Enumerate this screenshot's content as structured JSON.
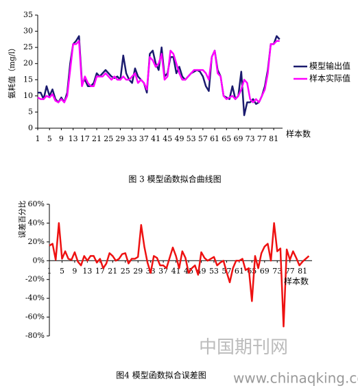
{
  "chart_data": [
    {
      "type": "line",
      "caption": "图 3  模型函数拟合曲线图",
      "y_label": "氨耗值（mg/l）",
      "x_label": "样本数",
      "x": [
        1,
        2,
        3,
        4,
        5,
        6,
        7,
        8,
        9,
        10,
        11,
        12,
        13,
        14,
        15,
        16,
        17,
        18,
        19,
        20,
        21,
        22,
        23,
        24,
        25,
        26,
        27,
        28,
        29,
        30,
        31,
        32,
        33,
        34,
        35,
        36,
        37,
        38,
        39,
        40,
        41,
        42,
        43,
        44,
        45,
        46,
        47,
        48,
        49,
        50,
        51,
        52,
        53,
        54,
        55,
        56,
        57,
        58,
        59,
        60,
        61,
        62,
        63,
        64,
        65,
        66,
        67,
        68,
        69,
        70,
        71,
        72,
        73,
        74,
        75,
        76,
        77,
        78,
        79,
        80,
        81,
        82,
        83
      ],
      "xlim": [
        1,
        84
      ],
      "xticks": [
        1,
        5,
        9,
        13,
        17,
        21,
        25,
        29,
        33,
        37,
        41,
        45,
        49,
        53,
        57,
        61,
        65,
        69,
        73,
        77,
        81
      ],
      "ylim": [
        0,
        35
      ],
      "yticks": [
        0,
        5,
        10,
        15,
        20,
        25,
        30,
        35
      ],
      "legend": "right",
      "series": [
        {
          "name": "模型输出值",
          "color": "#1a1a6e",
          "values": [
            11,
            11,
            9,
            13,
            10,
            12,
            9,
            8,
            9.5,
            8,
            11,
            20,
            26,
            27,
            28.5,
            14,
            15,
            13,
            13,
            14,
            17,
            16,
            17,
            18,
            17,
            16,
            15.5,
            16,
            15,
            22.5,
            17,
            15,
            14,
            18.5,
            16,
            15,
            14,
            11,
            23,
            24,
            20,
            18,
            25,
            16,
            17,
            22,
            22,
            17,
            19,
            16,
            15,
            16,
            17,
            17.5,
            18,
            17.5,
            16,
            13,
            11.5,
            22,
            24,
            18,
            16,
            10,
            9.5,
            9,
            13,
            9,
            10,
            17.5,
            4,
            8,
            8,
            9,
            7.5,
            8,
            10,
            13,
            18,
            26,
            26,
            28.5,
            27.5
          ]
        },
        {
          "name": "样本实际值",
          "color": "#ff00ff",
          "values": [
            9.5,
            9,
            9,
            10,
            9.5,
            10.5,
            8.5,
            8,
            9,
            8,
            10,
            18,
            26,
            26,
            27,
            13,
            16,
            14,
            13,
            13,
            16,
            16,
            16,
            17,
            16,
            15,
            16,
            15,
            15,
            16,
            15,
            15,
            16,
            17,
            14,
            15,
            14,
            12,
            22,
            21,
            19,
            20,
            23,
            15,
            16,
            24,
            23,
            20,
            17,
            15,
            15,
            16,
            17,
            18,
            18,
            18,
            18,
            17,
            15,
            22,
            24,
            17,
            16,
            10,
            9,
            9.5,
            10,
            9,
            10,
            12,
            15,
            14,
            9,
            8,
            9,
            8,
            10,
            12,
            17,
            26,
            26,
            27,
            27
          ]
        }
      ]
    },
    {
      "type": "line",
      "caption": "图4  模型函数拟合误差图",
      "y_label": "误差百分比",
      "x_label": "样本数",
      "x": [
        1,
        2,
        3,
        4,
        5,
        6,
        7,
        8,
        9,
        10,
        11,
        12,
        13,
        14,
        15,
        16,
        17,
        18,
        19,
        20,
        21,
        22,
        23,
        24,
        25,
        26,
        27,
        28,
        29,
        30,
        31,
        32,
        33,
        34,
        35,
        36,
        37,
        38,
        39,
        40,
        41,
        42,
        43,
        44,
        45,
        46,
        47,
        48,
        49,
        50,
        51,
        52,
        53,
        54,
        55,
        56,
        57,
        58,
        59,
        60,
        61,
        62,
        63,
        64,
        65,
        66,
        67,
        68,
        69,
        70,
        71,
        72,
        73,
        74,
        75,
        76,
        77,
        78,
        79,
        80,
        81,
        82,
        83
      ],
      "xlim": [
        1,
        84
      ],
      "xticks": [
        1,
        5,
        9,
        13,
        17,
        21,
        25,
        29,
        33,
        37,
        41,
        45,
        49,
        53,
        57,
        61,
        65,
        69,
        73,
        77,
        81
      ],
      "ylim": [
        -80,
        60
      ],
      "yticks": [
        {
          "value": -80,
          "label": "-80%"
        },
        {
          "value": -60,
          "label": "-60%"
        },
        {
          "value": -40,
          "label": "-40%"
        },
        {
          "value": -20,
          "label": "-20%"
        },
        {
          "value": 0,
          "label": "0%"
        },
        {
          "value": 20,
          "label": "20%"
        },
        {
          "value": 40,
          "label": "40%"
        },
        {
          "value": 60,
          "label": "60%"
        }
      ],
      "series": [
        {
          "name": null,
          "color": "#ee1111",
          "values": [
            16,
            18,
            1,
            40,
            2,
            10,
            2,
            1,
            9,
            -1,
            -5,
            5,
            0,
            5,
            5,
            -2,
            2,
            -8,
            -3,
            8,
            5,
            0,
            2,
            7,
            8,
            -3,
            2,
            2,
            4,
            38,
            15,
            -2,
            -13,
            5,
            3,
            -5,
            -5,
            -8,
            3,
            14,
            5,
            -8,
            10,
            3,
            -13,
            -8,
            -5,
            -15,
            9,
            3,
            0,
            2,
            4,
            -5,
            -2,
            0,
            -12,
            -23,
            -8,
            0,
            0,
            2,
            -10,
            -8,
            -43,
            5,
            -8,
            8,
            15,
            18,
            0,
            40,
            10,
            13,
            -70,
            12,
            1,
            10,
            3,
            -5,
            -1,
            2,
            5
          ]
        }
      ]
    }
  ],
  "watermark": [
    "中国期刊网",
    "www.chinaqking.com"
  ]
}
